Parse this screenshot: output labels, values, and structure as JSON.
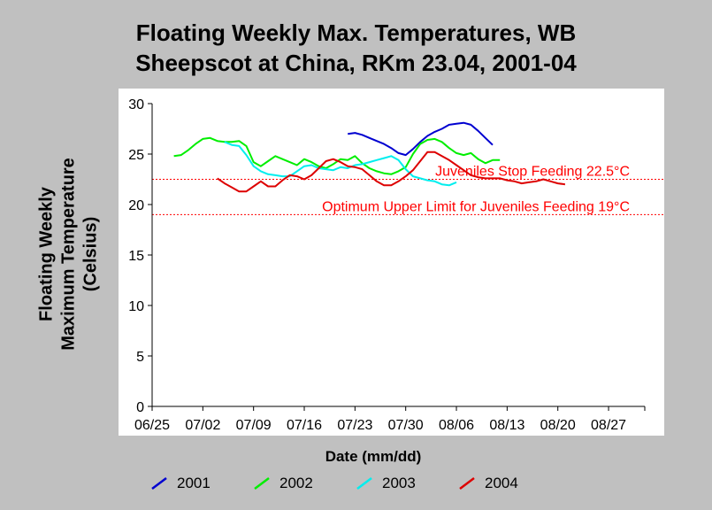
{
  "chart_data": {
    "type": "line",
    "title": [
      "Floating Weekly Max. Temperatures, WB",
      "Sheepscot at China, RKm 23.04, 2001-04"
    ],
    "xlabel": "Date (mm/dd)",
    "ylabel": [
      "Floating Weekly",
      "Maximum Temperature",
      "(Celsius)"
    ],
    "x_ticks": [
      "06/25",
      "07/02",
      "07/09",
      "07/16",
      "07/23",
      "07/30",
      "08/06",
      "08/13",
      "08/20",
      "08/27"
    ],
    "y_ticks": [
      0,
      5,
      10,
      15,
      20,
      25,
      30
    ],
    "ylim": [
      0,
      30
    ],
    "xlim": [
      "06/25",
      "09/01"
    ],
    "grid": false,
    "legend_position": "bottom",
    "reference_lines": [
      {
        "label": "Juveniles Stop Feeding 22.5°C",
        "value": 22.5,
        "color": "#ff0000"
      },
      {
        "label": "Optimum Upper Limit for Juveniles Feeding 19°C",
        "value": 19,
        "color": "#ff0000"
      }
    ],
    "series": [
      {
        "name": "2001",
        "color": "#0000d0",
        "points": [
          [
            "07/22",
            27.0
          ],
          [
            "07/23",
            27.1
          ],
          [
            "07/24",
            26.9
          ],
          [
            "07/25",
            26.6
          ],
          [
            "07/26",
            26.3
          ],
          [
            "07/27",
            26.0
          ],
          [
            "07/28",
            25.6
          ],
          [
            "07/29",
            25.1
          ],
          [
            "07/30",
            24.9
          ],
          [
            "07/31",
            25.5
          ],
          [
            "08/01",
            26.2
          ],
          [
            "08/02",
            26.8
          ],
          [
            "08/03",
            27.2
          ],
          [
            "08/04",
            27.5
          ],
          [
            "08/05",
            27.9
          ],
          [
            "08/06",
            28.0
          ],
          [
            "08/07",
            28.1
          ],
          [
            "08/08",
            27.9
          ],
          [
            "08/09",
            27.3
          ],
          [
            "08/10",
            26.6
          ],
          [
            "08/11",
            25.9
          ]
        ]
      },
      {
        "name": "2002",
        "color": "#00ee00",
        "points": [
          [
            "06/28",
            24.8
          ],
          [
            "06/29",
            24.9
          ],
          [
            "06/30",
            25.4
          ],
          [
            "07/01",
            26.0
          ],
          [
            "07/02",
            26.5
          ],
          [
            "07/03",
            26.6
          ],
          [
            "07/04",
            26.3
          ],
          [
            "07/05",
            26.2
          ],
          [
            "07/06",
            26.2
          ],
          [
            "07/07",
            26.3
          ],
          [
            "07/08",
            25.8
          ],
          [
            "07/09",
            24.2
          ],
          [
            "07/10",
            23.8
          ],
          [
            "07/11",
            24.3
          ],
          [
            "07/12",
            24.8
          ],
          [
            "07/13",
            24.5
          ],
          [
            "07/14",
            24.2
          ],
          [
            "07/15",
            23.9
          ],
          [
            "07/16",
            24.5
          ],
          [
            "07/17",
            24.2
          ],
          [
            "07/18",
            23.8
          ],
          [
            "07/19",
            23.6
          ],
          [
            "07/20",
            24.0
          ],
          [
            "07/21",
            24.5
          ],
          [
            "07/22",
            24.4
          ],
          [
            "07/23",
            24.8
          ],
          [
            "07/24",
            24.1
          ],
          [
            "07/25",
            23.6
          ],
          [
            "07/26",
            23.3
          ],
          [
            "07/27",
            23.1
          ],
          [
            "07/28",
            23.0
          ],
          [
            "07/29",
            23.3
          ],
          [
            "07/30",
            23.7
          ],
          [
            "07/31",
            25.0
          ],
          [
            "08/01",
            26.0
          ],
          [
            "08/02",
            26.4
          ],
          [
            "08/03",
            26.5
          ],
          [
            "08/04",
            26.2
          ],
          [
            "08/05",
            25.6
          ],
          [
            "08/06",
            25.1
          ],
          [
            "08/07",
            24.9
          ],
          [
            "08/08",
            25.1
          ],
          [
            "08/09",
            24.5
          ],
          [
            "08/10",
            24.1
          ],
          [
            "08/11",
            24.4
          ],
          [
            "08/12",
            24.4
          ]
        ]
      },
      {
        "name": "2003",
        "color": "#00eeee",
        "points": [
          [
            "07/05",
            26.2
          ],
          [
            "07/06",
            25.9
          ],
          [
            "07/07",
            25.8
          ],
          [
            "07/08",
            24.9
          ],
          [
            "07/09",
            23.8
          ],
          [
            "07/10",
            23.3
          ],
          [
            "07/11",
            23.0
          ],
          [
            "07/12",
            22.9
          ],
          [
            "07/13",
            22.8
          ],
          [
            "07/14",
            22.8
          ],
          [
            "07/15",
            23.3
          ],
          [
            "07/16",
            23.8
          ],
          [
            "07/17",
            23.9
          ],
          [
            "07/18",
            23.6
          ],
          [
            "07/19",
            23.5
          ],
          [
            "07/20",
            23.4
          ],
          [
            "07/21",
            23.7
          ],
          [
            "07/22",
            23.6
          ],
          [
            "07/23",
            23.9
          ],
          [
            "07/24",
            24.0
          ],
          [
            "07/25",
            24.2
          ],
          [
            "07/26",
            24.4
          ],
          [
            "07/27",
            24.6
          ],
          [
            "07/28",
            24.8
          ],
          [
            "07/29",
            24.4
          ],
          [
            "07/30",
            23.5
          ],
          [
            "07/31",
            22.8
          ],
          [
            "08/01",
            22.6
          ],
          [
            "08/02",
            22.4
          ],
          [
            "08/03",
            22.3
          ],
          [
            "08/04",
            22.0
          ],
          [
            "08/05",
            21.9
          ],
          [
            "08/06",
            22.2
          ]
        ]
      },
      {
        "name": "2004",
        "color": "#dd0000",
        "points": [
          [
            "07/04",
            22.6
          ],
          [
            "07/05",
            22.1
          ],
          [
            "07/06",
            21.7
          ],
          [
            "07/07",
            21.3
          ],
          [
            "07/08",
            21.3
          ],
          [
            "07/09",
            21.8
          ],
          [
            "07/10",
            22.3
          ],
          [
            "07/11",
            21.8
          ],
          [
            "07/12",
            21.8
          ],
          [
            "07/13",
            22.4
          ],
          [
            "07/14",
            22.9
          ],
          [
            "07/15",
            22.8
          ],
          [
            "07/16",
            22.5
          ],
          [
            "07/17",
            22.9
          ],
          [
            "07/18",
            23.6
          ],
          [
            "07/19",
            24.3
          ],
          [
            "07/20",
            24.5
          ],
          [
            "07/21",
            24.2
          ],
          [
            "07/22",
            23.8
          ],
          [
            "07/23",
            23.7
          ],
          [
            "07/24",
            23.5
          ],
          [
            "07/25",
            22.9
          ],
          [
            "07/26",
            22.3
          ],
          [
            "07/27",
            21.9
          ],
          [
            "07/28",
            21.9
          ],
          [
            "07/29",
            22.3
          ],
          [
            "07/30",
            22.8
          ],
          [
            "07/31",
            23.4
          ],
          [
            "08/01",
            24.3
          ],
          [
            "08/02",
            25.2
          ],
          [
            "08/03",
            25.2
          ],
          [
            "08/04",
            24.8
          ],
          [
            "08/05",
            24.4
          ],
          [
            "08/06",
            23.9
          ],
          [
            "08/07",
            23.4
          ],
          [
            "08/08",
            22.9
          ],
          [
            "08/09",
            22.7
          ],
          [
            "08/10",
            22.6
          ],
          [
            "08/11",
            22.6
          ],
          [
            "08/12",
            22.6
          ],
          [
            "08/13",
            22.4
          ],
          [
            "08/14",
            22.3
          ],
          [
            "08/15",
            22.1
          ],
          [
            "08/16",
            22.2
          ],
          [
            "08/17",
            22.3
          ],
          [
            "08/18",
            22.5
          ],
          [
            "08/19",
            22.3
          ],
          [
            "08/20",
            22.1
          ],
          [
            "08/21",
            22.0
          ]
        ]
      }
    ]
  }
}
